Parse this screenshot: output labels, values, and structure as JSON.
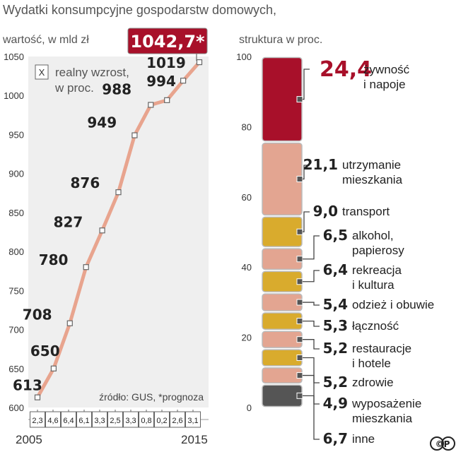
{
  "header": {
    "title": "Wydatki konsumpcyjne gospodarstw domowych,",
    "left_subtitle": "wartość, w mld zł",
    "right_subtitle": "struktura w proc.",
    "source": "źródło: GUS, *prognoza",
    "logo": "©P"
  },
  "chart_data": [
    {
      "type": "line",
      "title": "Wydatki konsumpcyjne gospodarstw domowych,",
      "ylabel": "wartość, w mld zł",
      "ylim": [
        600,
        1050
      ],
      "yticks": [
        "600",
        "650",
        "700",
        "750",
        "800",
        "850",
        "900",
        "950",
        "1000",
        "1050"
      ],
      "x": [
        2005,
        2006,
        2007,
        2008,
        2009,
        2010,
        2011,
        2012,
        2013,
        2014,
        2015
      ],
      "x_end_labels": [
        "2005",
        "2015"
      ],
      "values": [
        613,
        650,
        708,
        780,
        827,
        876,
        949,
        988,
        994,
        1019,
        1042.7
      ],
      "value_labels": [
        "613",
        "650",
        "708",
        "780",
        "827",
        "876",
        "949",
        "988",
        "994",
        "1019",
        "1042,7*"
      ],
      "growth_legend_box": "X",
      "growth_legend_text": [
        "realny wzrost,",
        "w proc."
      ],
      "growth_labels": [
        "2,3",
        "4,6",
        "6,4",
        "6,1",
        "3,3",
        "2,5",
        "3,3",
        "0,8",
        "0,2",
        "2,6",
        "3,1"
      ],
      "colors": {
        "line": "#e8a48e",
        "highlight": "#a8102a",
        "panel": "#efefef"
      }
    },
    {
      "type": "bar",
      "title": "struktura w proc.",
      "ylim": [
        0,
        100
      ],
      "yticks": [
        "0",
        "20",
        "40",
        "60",
        "80",
        "100"
      ],
      "segments": [
        {
          "value": 24.4,
          "label": "24,4",
          "name": [
            "żywność",
            "i napoje"
          ],
          "color": "#a8102a"
        },
        {
          "value": 21.1,
          "label": "21,1",
          "name": [
            "utrzymanie",
            "mieszkania"
          ],
          "color": "#e3a591"
        },
        {
          "value": 9.0,
          "label": "9,0",
          "name": [
            "transport"
          ],
          "color": "#d9ab2d"
        },
        {
          "value": 6.5,
          "label": "6,5",
          "name": [
            "alkohol,",
            "papierosy"
          ],
          "color": "#e3a591"
        },
        {
          "value": 6.4,
          "label": "6,4",
          "name": [
            "rekreacja",
            "i kultura"
          ],
          "color": "#d9ab2d"
        },
        {
          "value": 5.4,
          "label": "5,4",
          "name": [
            "odzież i obuwie"
          ],
          "color": "#e3a591"
        },
        {
          "value": 5.3,
          "label": "5,3",
          "name": [
            "łączność"
          ],
          "color": "#d9ab2d"
        },
        {
          "value": 5.2,
          "label": "5,2",
          "name": [
            "restauracje",
            "i hotele"
          ],
          "color": "#e3a591"
        },
        {
          "value": 5.2,
          "label": "5,2",
          "name": [
            "zdrowie"
          ],
          "color": "#d9ab2d"
        },
        {
          "value": 4.9,
          "label": "4,9",
          "name": [
            "wyposażenie",
            "mieszkania"
          ],
          "color": "#e3a591"
        },
        {
          "value": 6.7,
          "label": "6,7",
          "name": [
            "inne"
          ],
          "color": "#555555"
        }
      ]
    }
  ]
}
